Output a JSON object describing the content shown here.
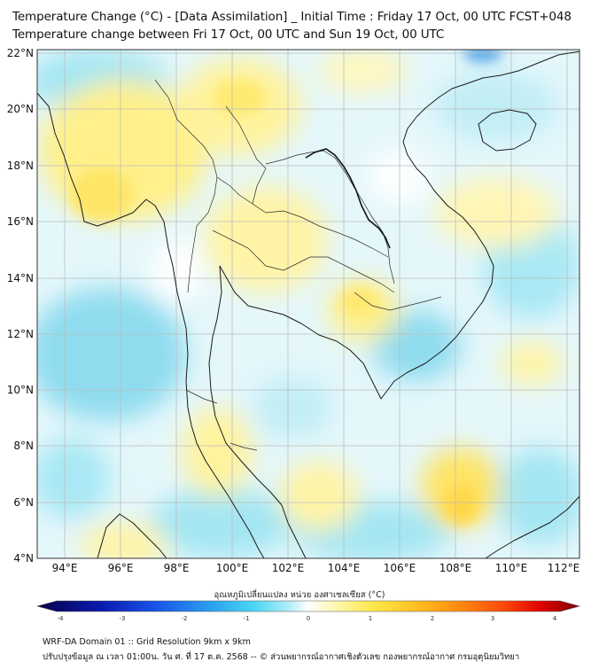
{
  "title_line1": "Temperature Change (°C) - [Data Assimilation] _ Initial Time : Friday 17 Oct, 00 UTC FCST+048",
  "title_line2": "Temperature change between Fri 17 Oct, 00 UTC and Sun 19 Oct, 00 UTC",
  "map": {
    "lat_labels": [
      "22°N",
      "20°N",
      "18°N",
      "16°N",
      "14°N",
      "12°N",
      "10°N",
      "8°N",
      "6°N",
      "4°N"
    ],
    "lon_labels": [
      "94°E",
      "96°E",
      "98°E",
      "100°E",
      "102°E",
      "104°E",
      "106°E",
      "108°E",
      "110°E",
      "112°E"
    ],
    "lat_range": [
      4,
      22
    ],
    "lon_range": [
      93,
      112.5
    ],
    "gridlines": true
  },
  "colorbar": {
    "title": "อุณหภูมิเปลี่ยนแปลง หน่วย องศาเซลเซียส (°C)",
    "ticks": [
      "-4",
      "-3",
      "-2",
      "-1",
      "0",
      "1",
      "2",
      "3",
      "4"
    ],
    "range": [
      -4,
      4
    ],
    "colors": [
      "#08004a",
      "#0a1bb0",
      "#1a55e8",
      "#2b9ff0",
      "#4cd7f3",
      "#a8ecf6",
      "#ffffff",
      "#fff7b0",
      "#ffe84a",
      "#ffbf1f",
      "#ff8a10",
      "#ff4a0a",
      "#e00000",
      "#7a0000"
    ]
  },
  "footer_line1": "WRF-DA Domain 01 :: Grid Resolution 9km x 9km",
  "footer_line2": "ปรับปรุงข้อมูล ณ เวลา 01:00น. วัน ศ. ที่ 17 ต.ค. 2568 -- © ส่วนพยากรณ์อากาศเชิงตัวเลข กองพยากรณ์อากาศ กรมอุตุนิยมวิทยา"
}
